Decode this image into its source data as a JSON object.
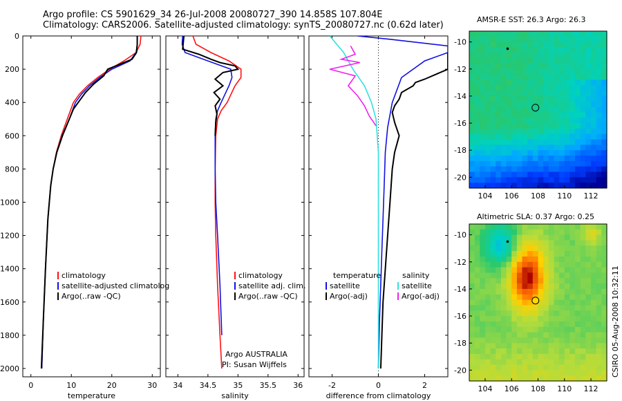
{
  "header": {
    "line1": "Argo profile: CS 5901629_34 26-Jul-2008 20080727_390 14.858S 107.804E",
    "line2": "Climatology: CARS2006. Satellite-adjusted climatology: synTS_20080727.nc (0.62d later)"
  },
  "side_label": "CSIRO 05-Aug-2008 10:32:11",
  "colors": {
    "red": "#ff1010",
    "blue": "#1010e0",
    "black": "#000000",
    "cyan": "#30e0e0",
    "magenta": "#f020f0"
  },
  "chart_data": [
    {
      "type": "line",
      "xlabel": "temperature",
      "xticks": [
        0,
        10,
        20,
        30
      ],
      "xlim": [
        -2,
        32
      ],
      "yticks": [
        0,
        200,
        400,
        600,
        800,
        1000,
        1200,
        1400,
        1600,
        1800,
        2000
      ],
      "ylim": [
        0,
        2050
      ],
      "legend": [
        "climatology",
        "satellite-adjusted climatolog",
        "Argo(..raw -QC)"
      ],
      "series": [
        {
          "name": "climatology",
          "color": "red",
          "x": [
            27.2,
            27.0,
            26.0,
            23.0,
            19.5,
            16.5,
            14.0,
            12.0,
            10.5,
            9.0,
            7.5,
            6.3,
            5.5,
            4.9,
            4.2,
            3.6,
            3.1,
            2.7
          ],
          "y": [
            0,
            50,
            100,
            150,
            200,
            250,
            300,
            350,
            400,
            500,
            600,
            700,
            800,
            900,
            1100,
            1400,
            1700,
            2000
          ]
        },
        {
          "name": "satellite-adjusted climatolog",
          "color": "blue",
          "x": [
            26.3,
            26.3,
            26.0,
            24.5,
            20.0,
            17.0,
            14.5,
            12.5,
            11.0,
            9.5,
            7.7,
            6.4,
            5.5,
            4.9,
            4.2,
            3.6,
            3.1,
            2.7
          ],
          "y": [
            0,
            50,
            100,
            150,
            200,
            250,
            300,
            350,
            400,
            500,
            600,
            700,
            800,
            900,
            1100,
            1400,
            1700,
            2000
          ]
        },
        {
          "name": "Argo(..raw -QC)",
          "color": "black",
          "x": [
            26.3,
            26.3,
            26.1,
            25.0,
            22.0,
            19.0,
            18.0,
            15.5,
            13.5,
            12.0,
            10.5,
            9.5,
            7.8,
            6.4,
            5.5,
            4.9,
            4.2,
            3.6,
            3.1,
            2.6
          ],
          "y": [
            0,
            50,
            100,
            140,
            170,
            200,
            240,
            290,
            340,
            390,
            440,
            500,
            600,
            700,
            800,
            900,
            1100,
            1400,
            1700,
            2000
          ]
        }
      ]
    },
    {
      "type": "line",
      "xlabel": "salinity",
      "xticks": [
        34,
        34.5,
        35,
        35.5,
        36
      ],
      "xticklabels": [
        "34",
        "34.5",
        "35",
        "35.5",
        "36"
      ],
      "xlim": [
        33.8,
        36.1
      ],
      "yticks": [
        0,
        200,
        400,
        600,
        800,
        1000,
        1200,
        1400,
        1600,
        1800,
        2000
      ],
      "ylim": [
        0,
        2050
      ],
      "legend": [
        "climatology",
        "satellite adj. clim.",
        "Argo(..raw -QC)"
      ],
      "annotation": [
        "Argo AUSTRALIA",
        "PI: Susan Wijffels"
      ],
      "series": [
        {
          "name": "climatology",
          "color": "red",
          "x": [
            34.25,
            34.3,
            34.55,
            34.85,
            35.05,
            35.05,
            34.95,
            34.82,
            34.72,
            34.66,
            34.63,
            34.62,
            34.62,
            34.63,
            34.66,
            34.7,
            34.73
          ],
          "y": [
            0,
            50,
            100,
            150,
            200,
            250,
            300,
            400,
            450,
            500,
            600,
            800,
            1000,
            1200,
            1500,
            1800,
            2000
          ]
        },
        {
          "name": "satellite adj. clim.",
          "color": "blue",
          "x": [
            34.08,
            34.07,
            34.12,
            34.5,
            34.88,
            34.9,
            34.85,
            34.72,
            34.66,
            34.63,
            34.62,
            34.62,
            34.63,
            34.66,
            34.7,
            34.73
          ],
          "y": [
            0,
            50,
            100,
            150,
            200,
            250,
            300,
            400,
            450,
            500,
            600,
            800,
            1000,
            1200,
            1500,
            1800
          ]
        },
        {
          "name": "Argo(..raw -QC)",
          "color": "black",
          "x": [
            34.1,
            34.08,
            34.35,
            34.55,
            34.7,
            34.95,
            35.0,
            34.75,
            34.62,
            34.75,
            34.6,
            34.7,
            34.62,
            34.65,
            34.63,
            34.62
          ],
          "y": [
            0,
            80,
            110,
            140,
            160,
            180,
            200,
            220,
            260,
            300,
            340,
            380,
            420,
            470,
            520,
            600
          ]
        }
      ]
    },
    {
      "type": "line",
      "xlabel": "difference from climatology",
      "xticks": [
        -2,
        0,
        2
      ],
      "xlim": [
        -3,
        3
      ],
      "yticks": [
        0,
        200,
        400,
        600,
        800,
        1000,
        1200,
        1400,
        1600,
        1800,
        2000
      ],
      "ylim": [
        0,
        2050
      ],
      "legend_left_title": "temperature",
      "legend_right_title": "salinity",
      "legend": [
        "satellite",
        "Argo(-adj)",
        "satellite",
        "Argo(-adj)"
      ],
      "series": [
        {
          "name": "satellite",
          "group": "temperature",
          "color": "blue",
          "x": [
            -0.9,
            0.5,
            3.0,
            3.0,
            2.0,
            1.0,
            0.6,
            0.4,
            0.3,
            0.25,
            0.2,
            0.15,
            0.1,
            0.05,
            0.0
          ],
          "y": [
            0,
            20,
            60,
            100,
            150,
            250,
            400,
            550,
            700,
            900,
            1100,
            1300,
            1500,
            1700,
            2000
          ]
        },
        {
          "name": "Argo(-adj)",
          "group": "temperature",
          "color": "black",
          "x": [
            3.0,
            3.0,
            2.0,
            1.6,
            1.5,
            1.0,
            0.9,
            0.7,
            0.6,
            0.7,
            0.9,
            0.7,
            0.6,
            0.5,
            0.4,
            0.2,
            0.1
          ],
          "y": [
            100,
            200,
            260,
            280,
            300,
            340,
            380,
            420,
            460,
            520,
            600,
            700,
            800,
            1000,
            1200,
            1600,
            2000
          ]
        },
        {
          "name": "satellite",
          "group": "salinity",
          "color": "cyan",
          "x": [
            -2.1,
            -1.8,
            -1.5,
            -1.1,
            -0.6,
            -0.3,
            -0.1,
            0.0,
            0.0,
            0.0,
            0.0
          ],
          "y": [
            0,
            50,
            100,
            200,
            300,
            400,
            500,
            700,
            1000,
            1500,
            2000
          ]
        },
        {
          "name": "Argo(-adj)",
          "group": "salinity",
          "color": "magenta",
          "x": [
            -1.2,
            -1.0,
            -1.6,
            -0.8,
            -2.1,
            -1.0,
            -1.3,
            -0.9,
            -0.6,
            -0.4,
            -0.1
          ],
          "y": [
            60,
            110,
            140,
            160,
            200,
            240,
            300,
            360,
            420,
            480,
            540
          ]
        }
      ]
    },
    {
      "type": "heatmap",
      "title": "AMSR-E SST: 26.3  Argo: 26.3",
      "xticks": [
        104,
        106,
        108,
        110,
        112
      ],
      "yticks": [
        -10,
        -12,
        -14,
        -16,
        -18,
        -20
      ],
      "xlim": [
        102.8,
        113.2
      ],
      "ylim": [
        -20.8,
        -9.2
      ],
      "float_position": {
        "lon": 107.804,
        "lat": -14.858
      },
      "marker": {
        "lon": 105.7,
        "lat": -10.5
      }
    },
    {
      "type": "heatmap",
      "title": "Altimetric SLA: 0.37  Argo: 0.25",
      "xticks": [
        104,
        106,
        108,
        110,
        112
      ],
      "yticks": [
        -10,
        -12,
        -14,
        -16,
        -18,
        -20
      ],
      "xlim": [
        102.8,
        113.2
      ],
      "ylim": [
        -20.8,
        -9.2
      ],
      "float_position": {
        "lon": 107.804,
        "lat": -14.858
      },
      "marker": {
        "lon": 105.7,
        "lat": -10.5
      }
    }
  ]
}
